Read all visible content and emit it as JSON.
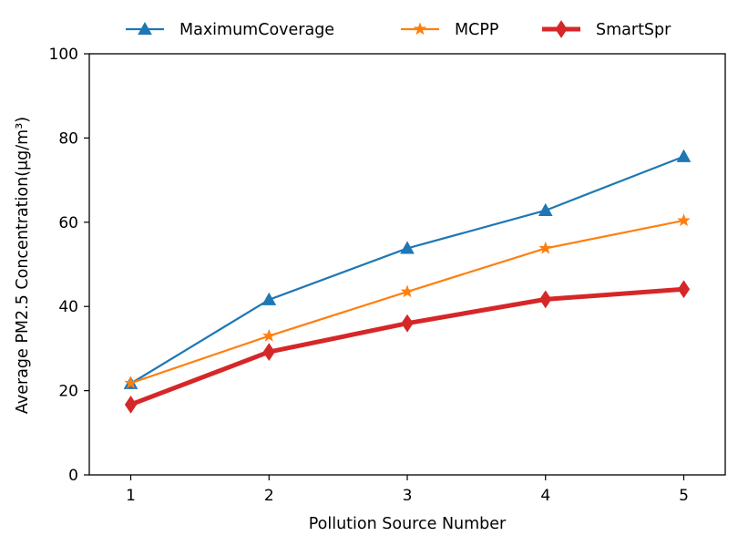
{
  "chart_data": {
    "type": "line",
    "title": "",
    "xlabel": "Pollution Source Number",
    "ylabel": "Average PM2.5 Concentration(μg/m³)",
    "x": [
      1,
      2,
      3,
      4,
      5
    ],
    "xticks": [
      "1",
      "2",
      "3",
      "4",
      "5"
    ],
    "xlim": [
      0.7,
      5.3
    ],
    "ylim": [
      0,
      100
    ],
    "yticks": [
      "0",
      "20",
      "40",
      "60",
      "80",
      "100"
    ],
    "grid": false,
    "legend_position": "top-center",
    "series": [
      {
        "name": "MaximumCoverage",
        "values": [
          21.7,
          41.6,
          53.8,
          62.8,
          75.6
        ],
        "color": "#1f77b4",
        "marker": "triangle"
      },
      {
        "name": "MCPP",
        "values": [
          21.8,
          33.0,
          43.5,
          53.8,
          60.4
        ],
        "color": "#ff7f0e",
        "marker": "star"
      },
      {
        "name": "SmartSpr",
        "values": [
          16.7,
          29.2,
          36.0,
          41.7,
          44.1
        ],
        "color": "#d62728",
        "marker": "diamond"
      }
    ]
  }
}
